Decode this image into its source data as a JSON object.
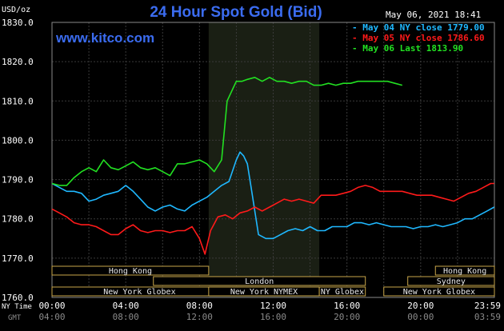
{
  "header": {
    "title": "24 Hour Spot Gold (Bid)",
    "unit": "USD/oz",
    "datetime": "May 06, 2021 18:41",
    "site": "www.kitco.com"
  },
  "legend": [
    {
      "text": "May 04 NY close 1779.00",
      "color": "#1fb8ff"
    },
    {
      "text": "May 05 NY close 1786.60",
      "color": "#ff1a1a"
    },
    {
      "text": "May 06 Last 1813.90",
      "color": "#22e022"
    }
  ],
  "axis_labels": {
    "ny_time": "NY Time",
    "gmt": "GMT"
  },
  "sessions": [
    {
      "label": "Hong Kong",
      "start": 0,
      "end": 8.5
    },
    {
      "label": "London",
      "start": 5.5,
      "end": 17.0
    },
    {
      "label": "New York Globex",
      "start": 0,
      "end": 9.5
    },
    {
      "label": "New York NYMEX",
      "start": 8.5,
      "end": 14.5
    },
    {
      "label": "NY Globex",
      "start": 14.5,
      "end": 17.0
    },
    {
      "label": "Hong Kong",
      "start": 20.8,
      "end": 24.0
    },
    {
      "label": "Sydney",
      "start": 19.3,
      "end": 24.0
    },
    {
      "label": "New York Globex",
      "start": 18.0,
      "end": 24.0
    }
  ],
  "chart_data": {
    "type": "line",
    "title": "24 Hour Spot Gold (Bid)",
    "ylabel": "USD/oz",
    "ylim": [
      1760,
      1830
    ],
    "xlim": [
      0,
      24
    ],
    "y_ticks": [
      "1830.0",
      "1820.0",
      "1810.0",
      "1800.0",
      "1790.0",
      "1780.0",
      "1770.0",
      "1760.0"
    ],
    "y_tick_values": [
      1830,
      1820,
      1810,
      1800,
      1790,
      1780,
      1770,
      1760
    ],
    "x_ticks_ny": [
      "00:00",
      "04:00",
      "08:00",
      "12:00",
      "16:00",
      "20:00",
      "23:59"
    ],
    "x_ticks_gmt": [
      "04:00",
      "08:00",
      "12:00",
      "16:00",
      "20:00",
      "00:00",
      "03:59"
    ],
    "x_tick_values": [
      0,
      4,
      8,
      12,
      16,
      20,
      24
    ],
    "highlight_range": [
      8.5,
      14.5
    ],
    "grid": true,
    "legend_position": "top-right",
    "series": [
      {
        "name": "May 04 NY close 1779.00",
        "color": "#1fb8ff",
        "x": [
          0,
          0.4,
          0.8,
          1.2,
          1.6,
          2.0,
          2.4,
          2.8,
          3.2,
          3.6,
          4.0,
          4.4,
          4.8,
          5.2,
          5.6,
          6.0,
          6.4,
          6.8,
          7.2,
          7.6,
          8.0,
          8.4,
          8.8,
          9.2,
          9.6,
          10.0,
          10.2,
          10.4,
          10.6,
          10.8,
          11.0,
          11.2,
          11.6,
          12.0,
          12.4,
          12.8,
          13.2,
          13.6,
          14.0,
          14.4,
          14.8,
          15.2,
          15.6,
          16.0,
          16.4,
          16.8,
          17.2,
          17.6,
          18.0,
          18.4,
          18.8,
          19.2,
          19.6,
          20.0,
          20.4,
          20.8,
          21.2,
          21.6,
          22.0,
          22.4,
          22.8,
          23.2,
          23.6,
          23.99
        ],
        "values": [
          1789,
          1788,
          1787,
          1787,
          1786.5,
          1784.5,
          1785,
          1786,
          1786.5,
          1787,
          1788.5,
          1787,
          1785,
          1783,
          1782,
          1783,
          1783.5,
          1782.5,
          1782,
          1783.5,
          1784.5,
          1785.5,
          1787,
          1788.5,
          1789.5,
          1795,
          1797,
          1796,
          1794,
          1788,
          1782,
          1776,
          1775,
          1775,
          1776,
          1777,
          1777.5,
          1777,
          1778,
          1777,
          1777,
          1778,
          1778,
          1778,
          1779,
          1779,
          1778.5,
          1779,
          1778.5,
          1778,
          1778,
          1778,
          1777.5,
          1778,
          1778,
          1778.5,
          1778,
          1778.5,
          1779,
          1780,
          1780,
          1781,
          1782,
          1783
        ]
      },
      {
        "name": "May 05 NY close 1786.60",
        "color": "#ff1a1a",
        "x": [
          0,
          0.4,
          0.8,
          1.2,
          1.6,
          2.0,
          2.4,
          2.8,
          3.2,
          3.6,
          4.0,
          4.4,
          4.8,
          5.2,
          5.6,
          6.0,
          6.4,
          6.8,
          7.2,
          7.6,
          8.0,
          8.3,
          8.6,
          9.0,
          9.4,
          9.8,
          10.2,
          10.6,
          11.0,
          11.4,
          11.8,
          12.2,
          12.6,
          13.0,
          13.4,
          13.8,
          14.2,
          14.6,
          15.0,
          15.4,
          15.8,
          16.2,
          16.6,
          17.0,
          17.4,
          17.8,
          18.2,
          18.6,
          19.0,
          19.4,
          19.8,
          20.2,
          20.6,
          21.0,
          21.4,
          21.8,
          22.2,
          22.6,
          23.0,
          23.4,
          23.8,
          23.99
        ],
        "values": [
          1782.5,
          1781.5,
          1780.5,
          1779,
          1778.5,
          1778.5,
          1778,
          1777,
          1776,
          1776,
          1777.5,
          1778.5,
          1777,
          1776.5,
          1777,
          1777,
          1776.5,
          1777,
          1777,
          1778,
          1775,
          1771,
          1777,
          1780.5,
          1781,
          1780,
          1781.5,
          1782,
          1783,
          1782,
          1783,
          1784,
          1785,
          1784.5,
          1785,
          1784.5,
          1784,
          1786,
          1786,
          1786,
          1786.5,
          1787,
          1788,
          1788.5,
          1788,
          1787,
          1787,
          1787,
          1787,
          1786.5,
          1786,
          1786,
          1786,
          1785.5,
          1785,
          1784.5,
          1785.5,
          1786.5,
          1787,
          1788,
          1789,
          1789
        ]
      },
      {
        "name": "May 06 Last 1813.90",
        "color": "#22e022",
        "x": [
          0,
          0.4,
          0.8,
          1.2,
          1.6,
          2.0,
          2.4,
          2.8,
          3.2,
          3.6,
          4.0,
          4.4,
          4.8,
          5.2,
          5.6,
          6.0,
          6.4,
          6.8,
          7.2,
          7.6,
          8.0,
          8.4,
          8.8,
          9.2,
          9.5,
          9.8,
          10.0,
          10.3,
          10.6,
          11.0,
          11.4,
          11.8,
          12.2,
          12.6,
          13.0,
          13.4,
          13.8,
          14.2,
          14.6,
          15.0,
          15.4,
          15.8,
          16.2,
          16.6,
          17.0,
          17.4,
          17.8,
          18.2,
          18.6,
          19.0
        ],
        "values": [
          1789,
          1788.5,
          1788.5,
          1790.5,
          1792,
          1793,
          1792,
          1795,
          1793,
          1792.5,
          1793.5,
          1794.5,
          1793,
          1792.5,
          1793,
          1792,
          1791,
          1794,
          1794,
          1794.5,
          1795,
          1794,
          1792,
          1795,
          1810,
          1813,
          1815,
          1815,
          1815.5,
          1816,
          1815,
          1816,
          1815,
          1815,
          1814.5,
          1815,
          1815,
          1814,
          1814,
          1814.5,
          1814,
          1814.5,
          1814.5,
          1815,
          1815,
          1815,
          1815,
          1815,
          1814.5,
          1814
        ]
      }
    ]
  }
}
